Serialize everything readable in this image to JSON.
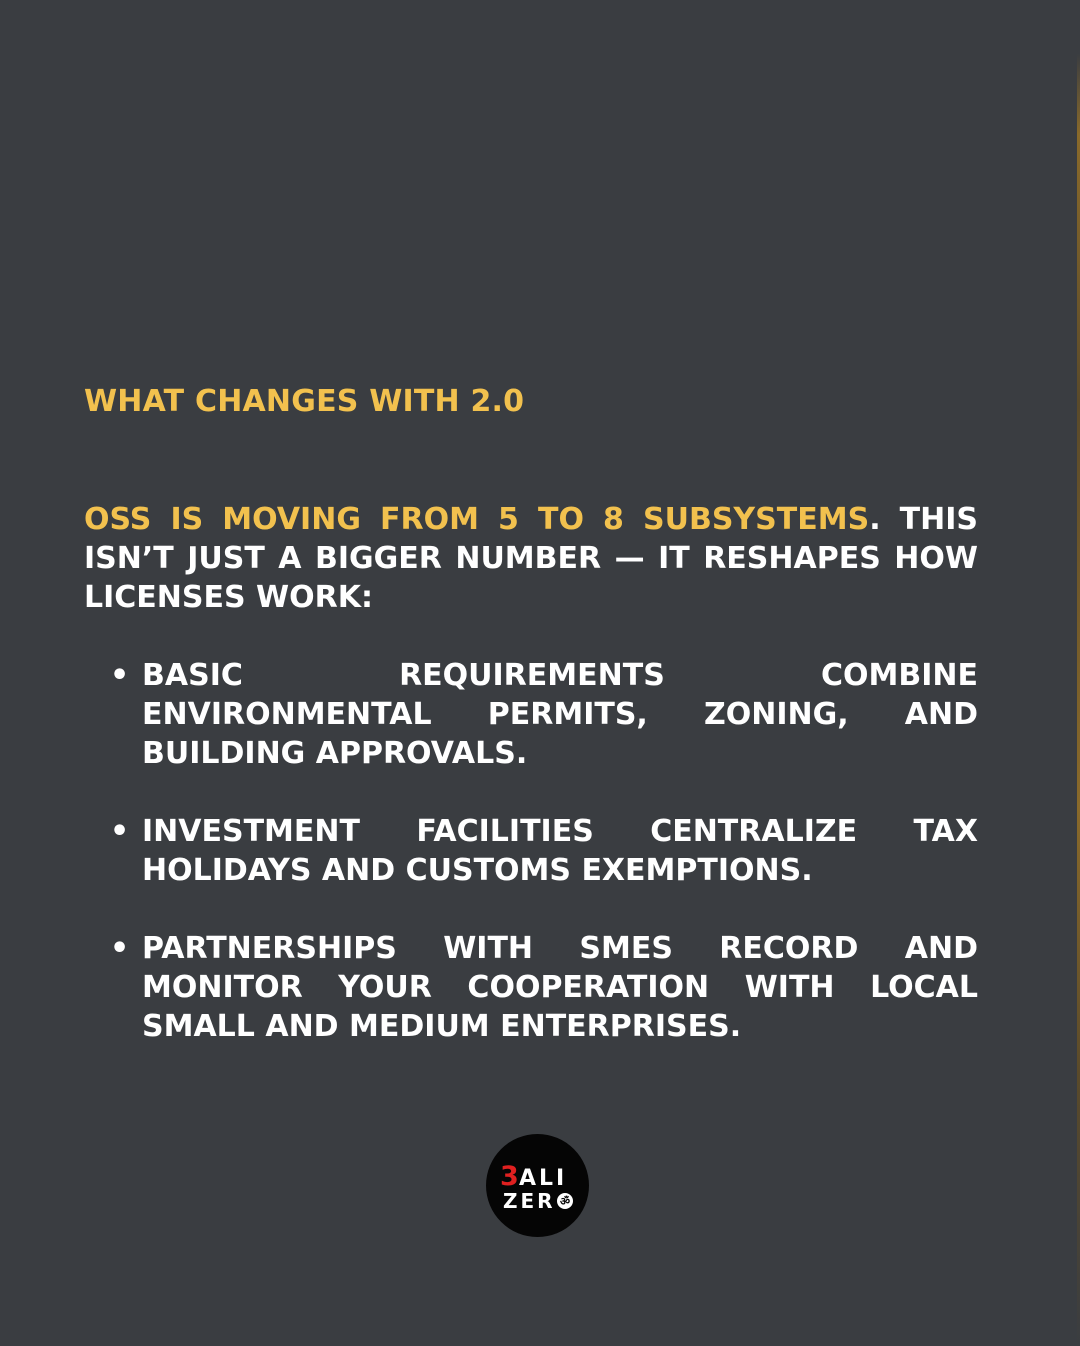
{
  "heading": "WHAT CHANGES WITH 2.0",
  "intro": {
    "highlight": "OSS IS MOVING FROM 5 TO 8 SUBSYSTEMS",
    "rest": ". THIS ISN’T JUST A BIGGER NUMBER — IT RESHAPES HOW LICENSES WORK:"
  },
  "bullets": [
    {
      "marker": "•",
      "text": "BASIC REQUIREMENTS COMBINE ENVIRONMENTAL PERMITS, ZONING, AND BUILDING APPROVALS."
    },
    {
      "marker": "•",
      "text": "INVESTMENT FACILITIES CENTRALIZE TAX HOLIDAYS AND CUSTOMS EXEMPTIONS."
    },
    {
      "marker": "•",
      "text": "PARTNERSHIPS WITH SMES RECORD AND MONITOR YOUR COOPERATION WITH LOCAL SMALL AND MEDIUM ENTERPRISES."
    }
  ],
  "logo": {
    "line1_accent": "3",
    "line1_rest": "ALI",
    "line2": "ZER",
    "symbol": "ॐ"
  },
  "colors": {
    "background": "#3a3d41",
    "accent": "#f2c14e",
    "text": "#ffffff",
    "logo_red": "#e02020"
  }
}
